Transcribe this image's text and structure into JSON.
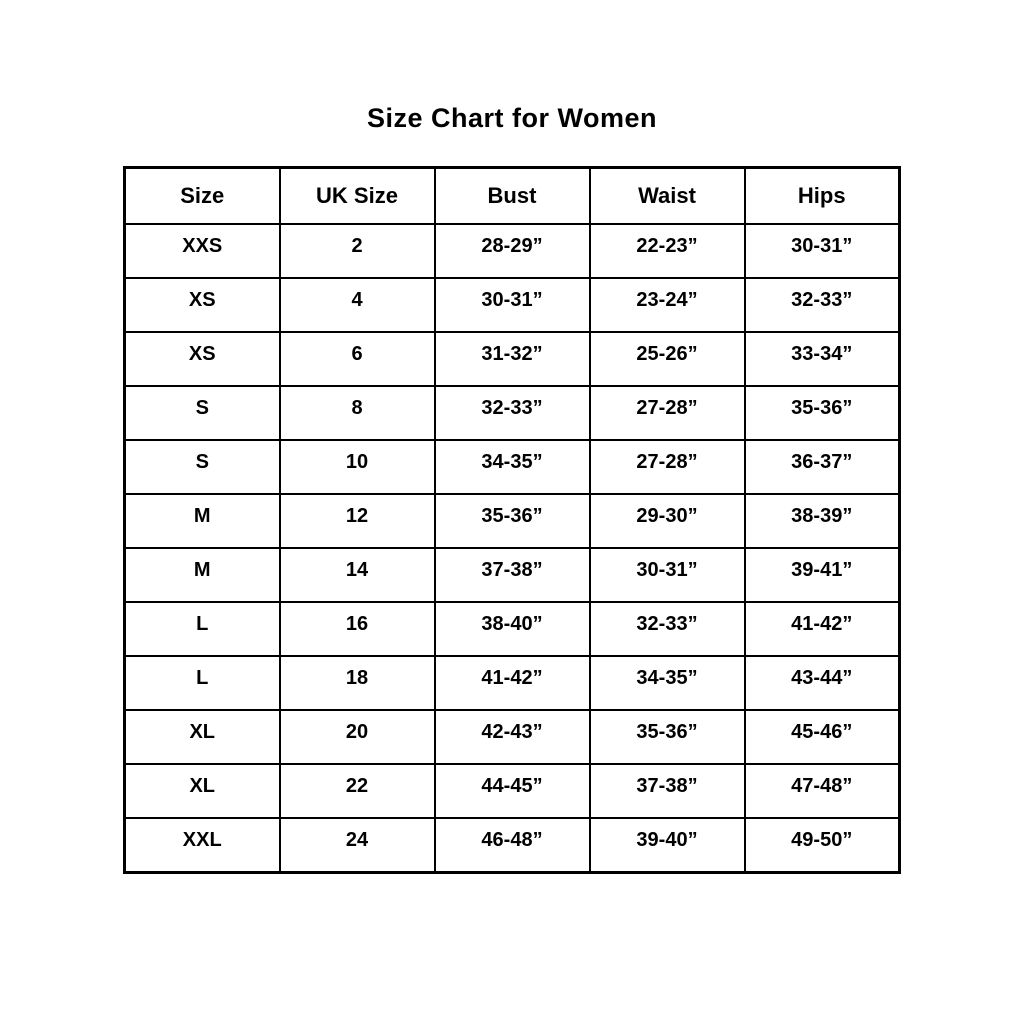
{
  "page": {
    "title": "Size Chart for Women"
  },
  "table": {
    "columns": [
      "Size",
      "UK Size",
      "Bust",
      "Waist",
      "Hips"
    ],
    "rows": [
      [
        "XXS",
        "2",
        "28-29”",
        "22-23”",
        "30-31”"
      ],
      [
        "XS",
        "4",
        "30-31”",
        "23-24”",
        "32-33”"
      ],
      [
        "XS",
        "6",
        "31-32”",
        "25-26”",
        "33-34”"
      ],
      [
        "S",
        "8",
        "32-33”",
        "27-28”",
        "35-36”"
      ],
      [
        "S",
        "10",
        "34-35”",
        "27-28”",
        "36-37”"
      ],
      [
        "M",
        "12",
        "35-36”",
        "29-30”",
        "38-39”"
      ],
      [
        "M",
        "14",
        "37-38”",
        "30-31”",
        "39-41”"
      ],
      [
        "L",
        "16",
        "38-40”",
        "32-33”",
        "41-42”"
      ],
      [
        "L",
        "18",
        "41-42”",
        "34-35”",
        "43-44”"
      ],
      [
        "XL",
        "20",
        "42-43”",
        "35-36”",
        "45-46”"
      ],
      [
        "XL",
        "22",
        "44-45”",
        "37-38”",
        "47-48”"
      ],
      [
        "XXL",
        "24",
        "46-48”",
        "39-40”",
        "49-50”"
      ]
    ]
  }
}
